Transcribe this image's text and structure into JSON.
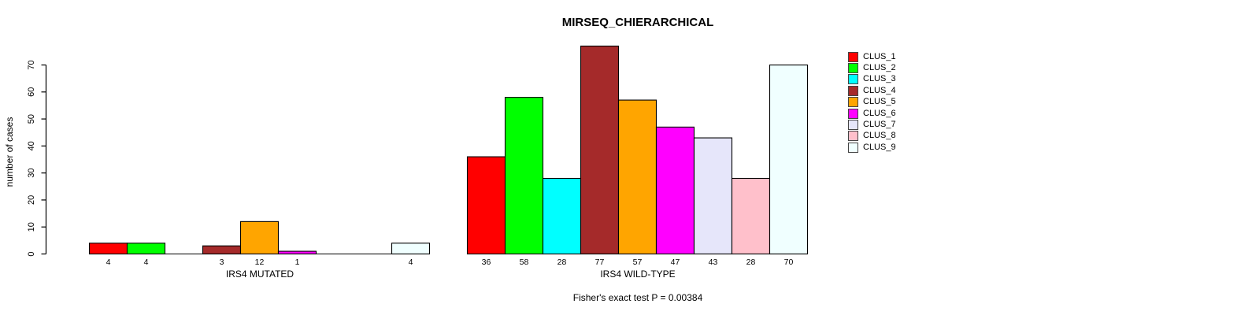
{
  "title": "MIRSEQ_CHIERARCHICAL",
  "footnote": "Fisher's exact test P = 0.00384",
  "y_axis": {
    "label": "number of cases"
  },
  "x_groups": {
    "left": "IRS4 MUTATED",
    "right": "IRS4 WILD-TYPE"
  },
  "chart_data": {
    "type": "bar",
    "title": "MIRSEQ_CHIERARCHICAL",
    "ylabel": "number of cases",
    "ylim": [
      0,
      70
    ],
    "yticks": [
      0,
      10,
      20,
      30,
      40,
      50,
      60,
      70
    ],
    "grid": false,
    "legend_position": "right",
    "bar_value_labels_shown": true,
    "categories": [
      "IRS4 MUTATED",
      "IRS4 WILD-TYPE"
    ],
    "series": [
      {
        "name": "CLUS_1",
        "color": "#FF0000",
        "values": [
          4,
          36
        ]
      },
      {
        "name": "CLUS_2",
        "color": "#00FF00",
        "values": [
          4,
          58
        ]
      },
      {
        "name": "CLUS_3",
        "color": "#00FFFF",
        "values": [
          0,
          28
        ]
      },
      {
        "name": "CLUS_4",
        "color": "#A52A2A",
        "values": [
          3,
          77
        ]
      },
      {
        "name": "CLUS_5",
        "color": "#FFA500",
        "values": [
          12,
          57
        ]
      },
      {
        "name": "CLUS_6",
        "color": "#FF00FF",
        "values": [
          1,
          47
        ]
      },
      {
        "name": "CLUS_7",
        "color": "#E6E6FA",
        "values": [
          0,
          43
        ]
      },
      {
        "name": "CLUS_8",
        "color": "#FFC0CB",
        "values": [
          0,
          28
        ]
      },
      {
        "name": "CLUS_9",
        "color": "#F0FFFF",
        "values": [
          4,
          70
        ]
      }
    ],
    "footnote": "Fisher's exact test P = 0.00384"
  }
}
